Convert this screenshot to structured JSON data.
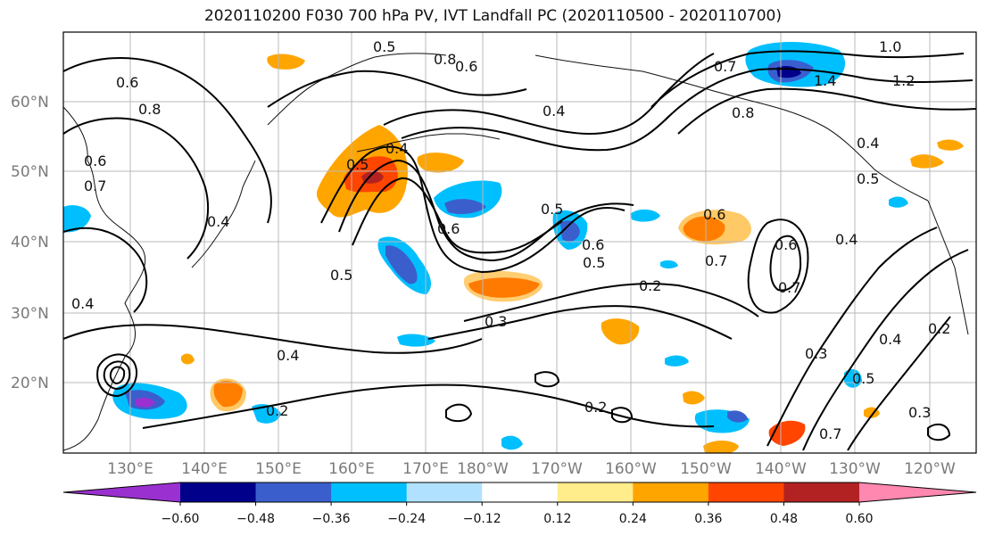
{
  "title": "2020110200 F030 700 hPa PV, IVT Landfall PC (2020110500 - 2020110700)",
  "map": {
    "lat_labels": [
      "60°N",
      "50°N",
      "40°N",
      "30°N",
      "20°N"
    ],
    "lon_labels": [
      "130°E",
      "140°E",
      "150°E",
      "160°E",
      "170°E",
      "180°W",
      "170°W",
      "160°W",
      "150°W",
      "140°W",
      "130°W",
      "120°W"
    ],
    "contour_labels": [
      "0.5",
      "0.8",
      "0.6",
      "0.7",
      "0.6",
      "0.8",
      "0.4",
      "0.4",
      "0.5",
      "0.5",
      "0.4",
      "0.6",
      "0.5",
      "0.6",
      "0.5",
      "0.7",
      "0.8",
      "1.0",
      "1.4",
      "1.2",
      "0.4",
      "0.6",
      "0.5",
      "0.3",
      "0.2",
      "0.4",
      "0.2",
      "0.2",
      "0.6",
      "0.7",
      "0.7",
      "0.4",
      "0.3",
      "0.4",
      "0.2",
      "0.3",
      "0.6",
      "0.5",
      "0.7",
      "0.4"
    ]
  },
  "colorbar": {
    "ticks": [
      "−0.60",
      "−0.48",
      "−0.36",
      "−0.24",
      "−0.12",
      "0.12",
      "0.24",
      "0.36",
      "0.48",
      "0.60"
    ],
    "colors": [
      "#9b30d0",
      "#00008b",
      "#3a5fcd",
      "#00bfff",
      "#b0e2ff",
      "#ffffff",
      "#ffec8b",
      "#ffa500",
      "#ff4500",
      "#b22222",
      "#ff88b0"
    ]
  }
}
